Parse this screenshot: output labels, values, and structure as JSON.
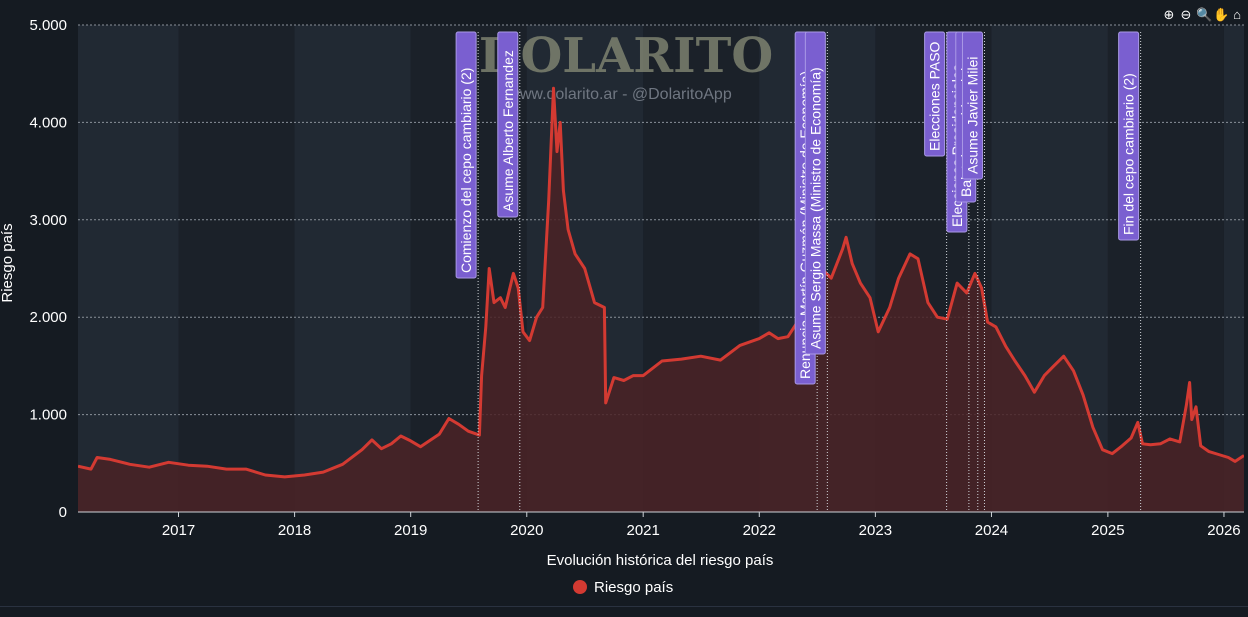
{
  "watermark": {
    "logo": "DOLARITO",
    "subtitle": "www.dolarito.ar - @DolaritoApp"
  },
  "toolbar": {
    "zoom_in": "⊕",
    "zoom_out": "⊖",
    "zoom": "🔍",
    "pan": "✋",
    "home": "⌂"
  },
  "colors": {
    "background": "#151b22",
    "plot_background": "#1c232c",
    "line": "#d33a32",
    "fill": "#4a2226",
    "annotation_bg": "#7a5fd0",
    "grid": "#8a919a"
  },
  "chart_data": {
    "type": "area",
    "xlabel": "Evolución histórica del riesgo país",
    "ylabel": "Riesgo país",
    "ylim": [
      0,
      5000
    ],
    "xlim": [
      "2016-02-20",
      "2026-03-05"
    ],
    "yticks": [
      0,
      1000,
      2000,
      3000,
      4000,
      5000
    ],
    "ytick_labels": [
      "0",
      "1.000",
      "2.000",
      "3.000",
      "4.000",
      "5.000"
    ],
    "xtick_labels": [
      "2017",
      "2018",
      "2019",
      "2020",
      "2021",
      "2022",
      "2023",
      "2024",
      "2025",
      "2026"
    ],
    "grid": true,
    "legend_position": "bottom",
    "series": [
      {
        "name": "Riesgo país",
        "points": [
          [
            "2016-02-20",
            470
          ],
          [
            "2016-04-01",
            440
          ],
          [
            "2016-04-20",
            560
          ],
          [
            "2016-06-01",
            540
          ],
          [
            "2016-08-01",
            490
          ],
          [
            "2016-10-01",
            460
          ],
          [
            "2016-12-01",
            510
          ],
          [
            "2017-02-01",
            480
          ],
          [
            "2017-04-01",
            470
          ],
          [
            "2017-06-01",
            440
          ],
          [
            "2017-08-01",
            440
          ],
          [
            "2017-10-01",
            380
          ],
          [
            "2017-12-01",
            360
          ],
          [
            "2018-02-01",
            380
          ],
          [
            "2018-04-01",
            410
          ],
          [
            "2018-06-01",
            490
          ],
          [
            "2018-08-01",
            640
          ],
          [
            "2018-09-01",
            740
          ],
          [
            "2018-10-01",
            650
          ],
          [
            "2018-11-01",
            700
          ],
          [
            "2018-12-01",
            780
          ],
          [
            "2019-01-01",
            730
          ],
          [
            "2019-02-01",
            670
          ],
          [
            "2019-04-01",
            800
          ],
          [
            "2019-05-01",
            960
          ],
          [
            "2019-06-01",
            900
          ],
          [
            "2019-07-01",
            830
          ],
          [
            "2019-08-05",
            790
          ],
          [
            "2019-08-12",
            1400
          ],
          [
            "2019-08-25",
            1900
          ],
          [
            "2019-09-05",
            2500
          ],
          [
            "2019-09-20",
            2150
          ],
          [
            "2019-10-10",
            2200
          ],
          [
            "2019-10-25",
            2100
          ],
          [
            "2019-11-20",
            2450
          ],
          [
            "2019-12-05",
            2300
          ],
          [
            "2019-12-20",
            1850
          ],
          [
            "2020-01-10",
            1760
          ],
          [
            "2020-02-01",
            2000
          ],
          [
            "2020-02-20",
            2100
          ],
          [
            "2020-03-10",
            3200
          ],
          [
            "2020-03-25",
            4350
          ],
          [
            "2020-04-05",
            3700
          ],
          [
            "2020-04-15",
            4000
          ],
          [
            "2020-04-25",
            3300
          ],
          [
            "2020-05-10",
            2900
          ],
          [
            "2020-06-01",
            2650
          ],
          [
            "2020-07-01",
            2500
          ],
          [
            "2020-08-01",
            2150
          ],
          [
            "2020-09-01",
            2100
          ],
          [
            "2020-09-05",
            1120
          ],
          [
            "2020-10-01",
            1380
          ],
          [
            "2020-11-01",
            1350
          ],
          [
            "2020-12-01",
            1400
          ],
          [
            "2021-01-01",
            1400
          ],
          [
            "2021-03-01",
            1550
          ],
          [
            "2021-05-01",
            1570
          ],
          [
            "2021-07-01",
            1600
          ],
          [
            "2021-09-01",
            1560
          ],
          [
            "2021-11-01",
            1710
          ],
          [
            "2022-01-01",
            1780
          ],
          [
            "2022-02-01",
            1840
          ],
          [
            "2022-03-01",
            1780
          ],
          [
            "2022-04-01",
            1800
          ],
          [
            "2022-05-01",
            1950
          ],
          [
            "2022-06-01",
            1800
          ],
          [
            "2022-06-20",
            2200
          ],
          [
            "2022-07-15",
            2500
          ],
          [
            "2022-08-15",
            2400
          ],
          [
            "2022-09-20",
            2700
          ],
          [
            "2022-10-01",
            2820
          ],
          [
            "2022-10-20",
            2550
          ],
          [
            "2022-11-15",
            2350
          ],
          [
            "2022-12-15",
            2200
          ],
          [
            "2023-01-10",
            1850
          ],
          [
            "2023-02-15",
            2100
          ],
          [
            "2023-03-15",
            2400
          ],
          [
            "2023-04-20",
            2650
          ],
          [
            "2023-05-15",
            2600
          ],
          [
            "2023-06-15",
            2150
          ],
          [
            "2023-07-15",
            2000
          ],
          [
            "2023-08-15",
            1980
          ],
          [
            "2023-09-15",
            2350
          ],
          [
            "2023-10-15",
            2250
          ],
          [
            "2023-11-10",
            2450
          ],
          [
            "2023-12-01",
            2300
          ],
          [
            "2023-12-20",
            1950
          ],
          [
            "2024-01-15",
            1900
          ],
          [
            "2024-02-15",
            1700
          ],
          [
            "2024-03-15",
            1550
          ],
          [
            "2024-04-15",
            1400
          ],
          [
            "2024-05-15",
            1230
          ],
          [
            "2024-06-15",
            1400
          ],
          [
            "2024-07-15",
            1500
          ],
          [
            "2024-08-15",
            1600
          ],
          [
            "2024-09-15",
            1450
          ],
          [
            "2024-10-15",
            1200
          ],
          [
            "2024-11-15",
            870
          ],
          [
            "2024-12-15",
            640
          ],
          [
            "2025-01-15",
            600
          ],
          [
            "2025-02-15",
            680
          ],
          [
            "2025-03-15",
            760
          ],
          [
            "2025-04-05",
            920
          ],
          [
            "2025-04-20",
            700
          ],
          [
            "2025-05-15",
            690
          ],
          [
            "2025-06-15",
            700
          ],
          [
            "2025-07-15",
            750
          ],
          [
            "2025-08-15",
            720
          ],
          [
            "2025-09-05",
            1100
          ],
          [
            "2025-09-15",
            1330
          ],
          [
            "2025-09-22",
            950
          ],
          [
            "2025-10-05",
            1080
          ],
          [
            "2025-10-20",
            680
          ],
          [
            "2025-11-15",
            620
          ],
          [
            "2025-12-15",
            590
          ],
          [
            "2026-01-15",
            560
          ],
          [
            "2026-02-05",
            520
          ],
          [
            "2026-03-05",
            580
          ]
        ]
      }
    ],
    "annotations": [
      {
        "date": "2019-08-01",
        "label": "Comienzo del cepo cambiario (2)"
      },
      {
        "date": "2019-12-10",
        "label": "Asume Alberto Fernandez"
      },
      {
        "date": "2022-07-02",
        "label": "Renuncia Martín Guzmán (Ministro de Economía)"
      },
      {
        "date": "2022-08-03",
        "label": "Asume Sergio Massa (Ministro de Economía)"
      },
      {
        "date": "2023-08-13",
        "label": "Elecciones PASO"
      },
      {
        "date": "2023-10-22",
        "label": "Elecciones Presidenciales"
      },
      {
        "date": "2023-11-19",
        "label": "Balotaje presidencial"
      },
      {
        "date": "2023-12-10",
        "label": "Asume Javier Milei"
      },
      {
        "date": "2025-04-14",
        "label": "Fin del cepo cambiario (2)"
      }
    ]
  }
}
